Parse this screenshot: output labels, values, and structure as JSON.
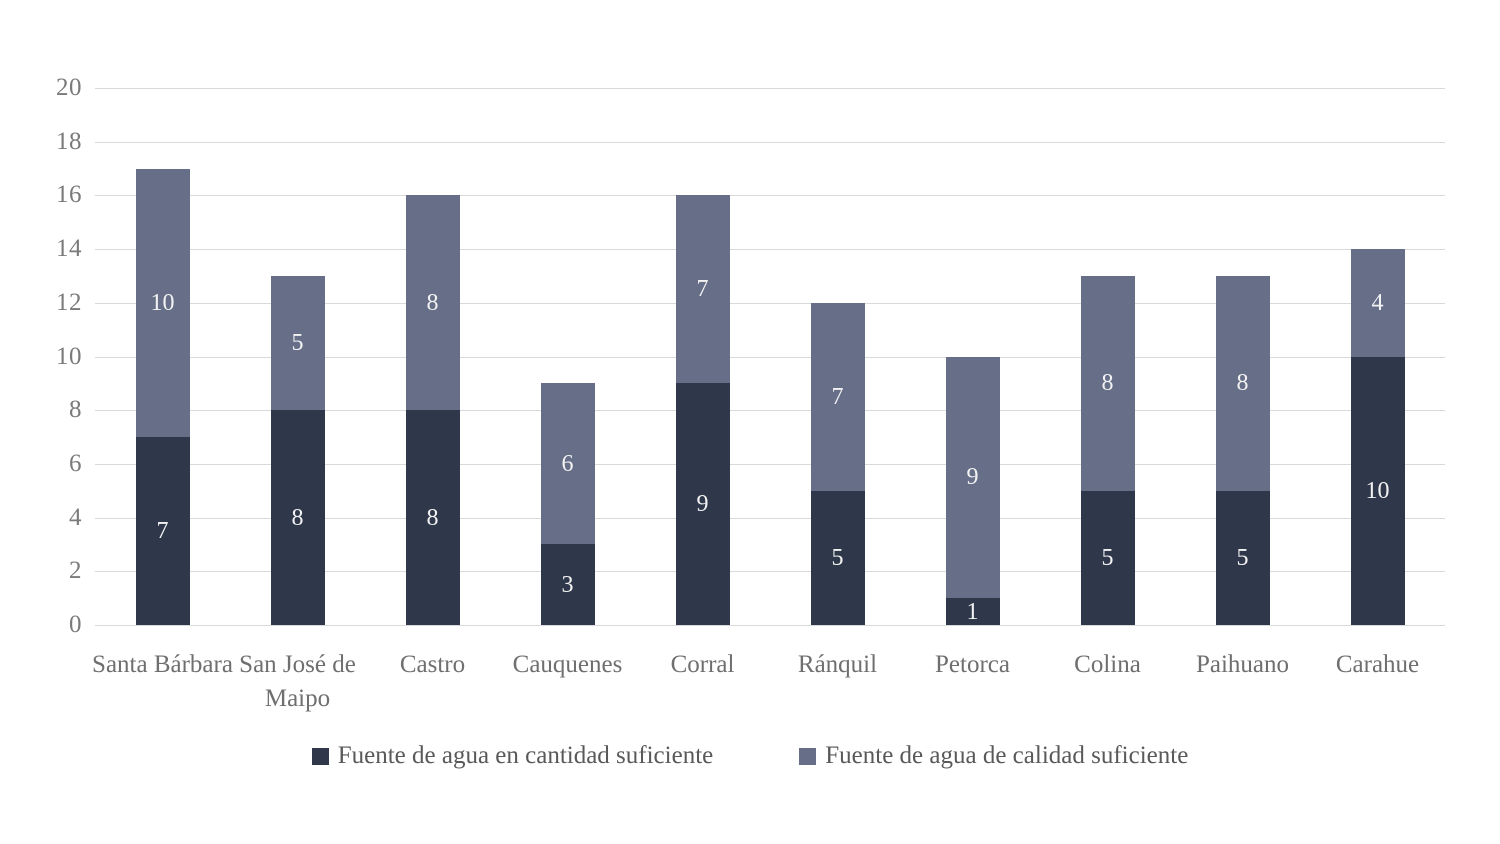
{
  "chart_data": {
    "type": "bar",
    "stacked": true,
    "title": "",
    "xlabel": "",
    "ylabel": "",
    "categories": [
      "Santa Bárbara",
      "San José de Maipo",
      "Castro",
      "Cauquenes",
      "Corral",
      "Ránquil",
      "Petorca",
      "Colina",
      "Paihuano",
      "Carahue"
    ],
    "series": [
      {
        "name": "Fuente de agua en cantidad suficiente",
        "color": "#2f374b",
        "values": [
          7,
          8,
          8,
          3,
          9,
          5,
          1,
          5,
          5,
          10
        ]
      },
      {
        "name": "Fuente de agua de calidad suficiente",
        "color": "#666e88",
        "values": [
          10,
          5,
          8,
          6,
          7,
          7,
          9,
          8,
          8,
          4
        ]
      }
    ],
    "totals": [
      17,
      13,
      16,
      9,
      16,
      12,
      10,
      13,
      13,
      14
    ],
    "ylim": [
      0,
      20
    ],
    "yticks": [
      0,
      2,
      4,
      6,
      8,
      10,
      12,
      14,
      16,
      18,
      20
    ],
    "grid": true,
    "legend_position": "bottom"
  },
  "colors": {
    "background": "#ffffff",
    "gridline": "#d9d9d9",
    "axis_text": "#7a7a7a",
    "xlabel_text": "#6f6f6f",
    "legend_text": "#595959",
    "data_label": "#f2f2f2"
  }
}
